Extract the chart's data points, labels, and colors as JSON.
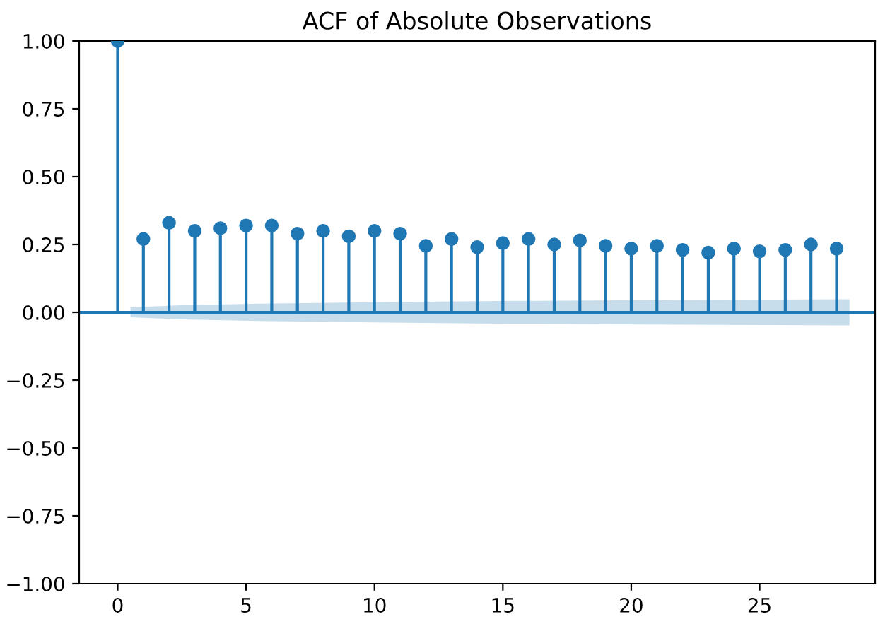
{
  "chart_data": {
    "type": "lollipop",
    "title": "ACF of Absolute Observations",
    "x": [
      0,
      1,
      2,
      3,
      4,
      5,
      6,
      7,
      8,
      9,
      10,
      11,
      12,
      13,
      14,
      15,
      16,
      17,
      18,
      19,
      20,
      21,
      22,
      23,
      24,
      25,
      26,
      27,
      28
    ],
    "series": [
      {
        "marker": "circle",
        "color": "#1f77b4",
        "values": [
          1.0,
          0.27,
          0.33,
          0.3,
          0.31,
          0.32,
          0.32,
          0.29,
          0.3,
          0.28,
          0.3,
          0.29,
          0.245,
          0.27,
          0.24,
          0.255,
          0.27,
          0.25,
          0.265,
          0.245,
          0.235,
          0.245,
          0.23,
          0.22,
          0.235,
          0.225,
          0.23,
          0.25,
          0.235
        ]
      },
      {
        "type": "line",
        "color": "#1f77b4",
        "x": [
          -1.5,
          0.5,
          1.5,
          2.5,
          5.5,
          10.5,
          15.5,
          20.5,
          25.5,
          28.5,
          29.5
        ],
        "values": [
          0,
          0,
          0,
          0,
          0,
          0,
          0,
          0,
          0,
          0,
          0
        ],
        "lower": [
          null,
          -0.018,
          -0.022,
          -0.026,
          -0.032,
          -0.038,
          -0.042,
          -0.045,
          -0.047,
          -0.048,
          null
        ],
        "upper": [
          null,
          0.018,
          0.022,
          0.026,
          0.032,
          0.038,
          0.042,
          0.045,
          0.047,
          0.048,
          null
        ]
      }
    ],
    "grid": false,
    "xlim": [
      -1.5,
      29.5
    ],
    "ylim": [
      -1.0,
      1.0
    ],
    "xticks": [
      0,
      5,
      10,
      15,
      20,
      25
    ],
    "yticks": [
      {
        "value": -1.0,
        "label": "−1.00"
      },
      {
        "value": -0.75,
        "label": "−0.75"
      },
      {
        "value": -0.5,
        "label": "−0.50"
      },
      {
        "value": -0.25,
        "label": "−0.25"
      },
      {
        "value": 0.0,
        "label": "0.00"
      },
      {
        "value": 0.25,
        "label": "0.25"
      },
      {
        "value": 0.5,
        "label": "0.50"
      },
      {
        "value": 0.75,
        "label": "0.75"
      },
      {
        "value": 1.0,
        "label": "1.00"
      }
    ]
  }
}
